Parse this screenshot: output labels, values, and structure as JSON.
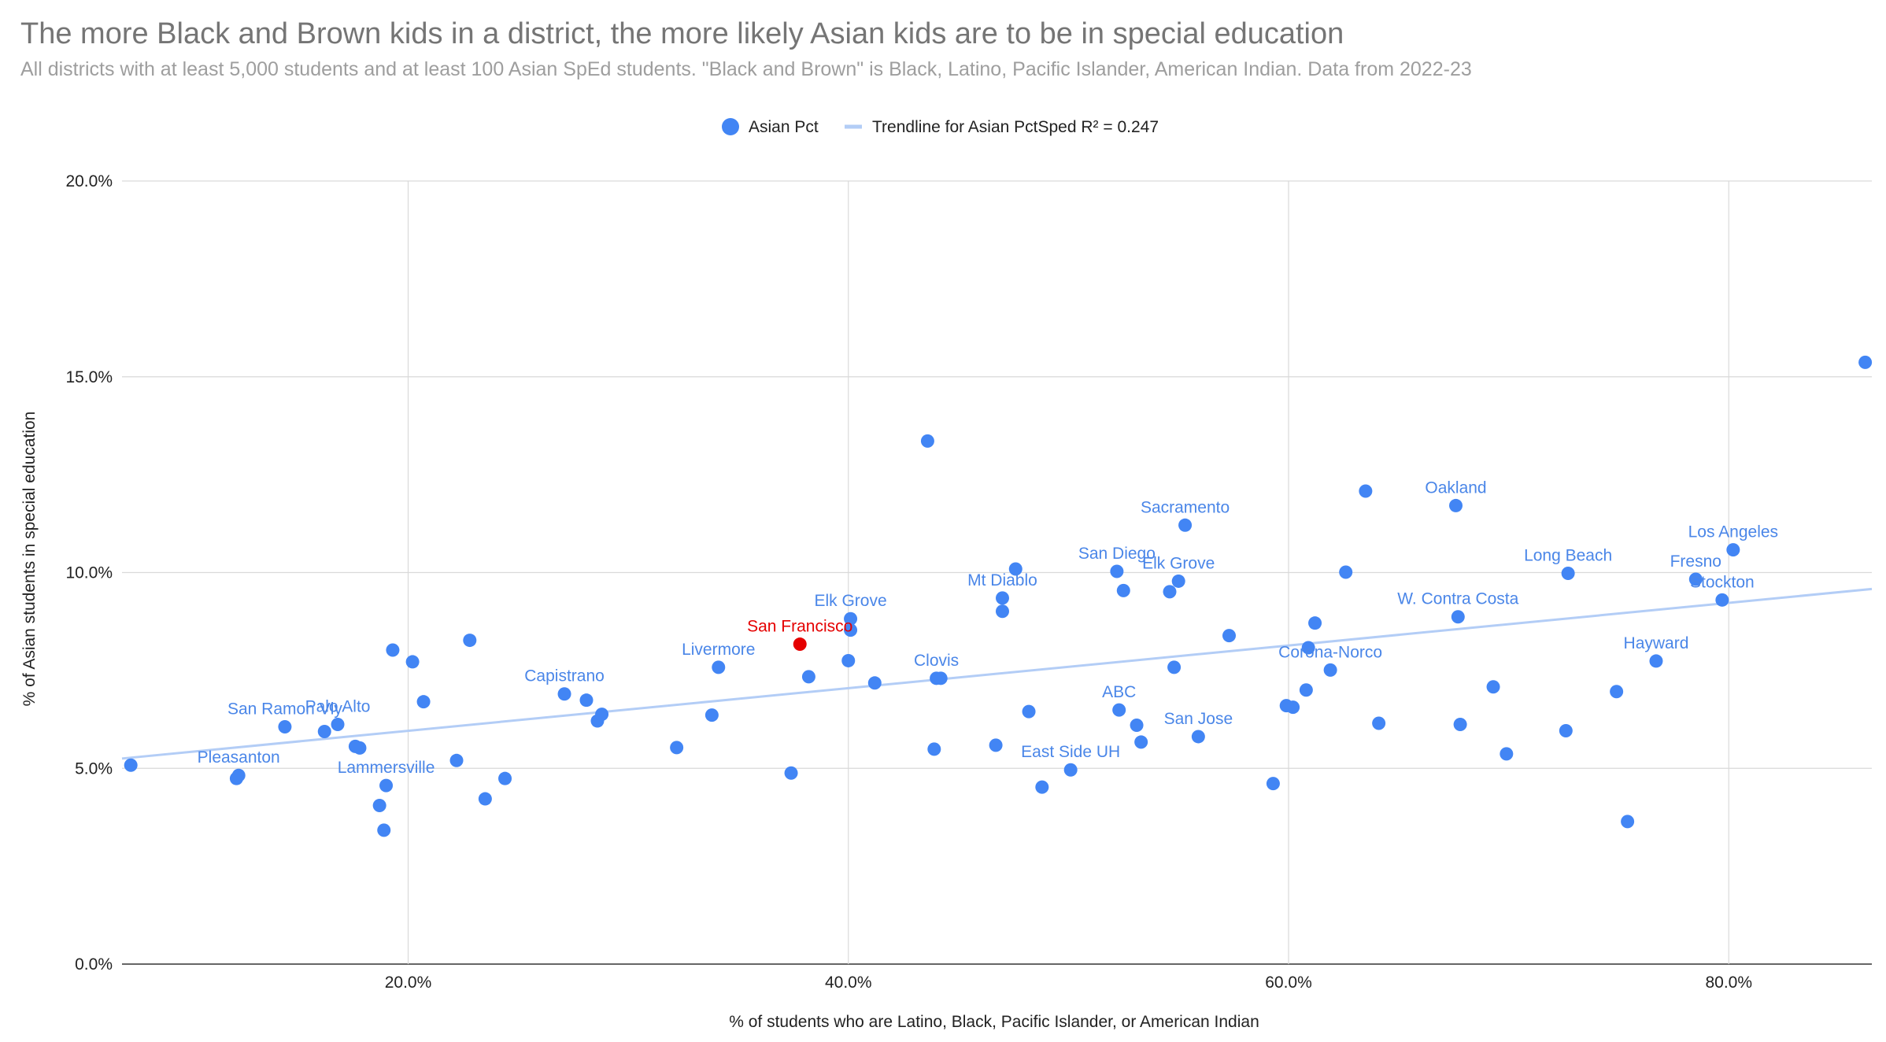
{
  "title": "The more Black and Brown kids in a district, the more likely Asian kids are to be in special education",
  "subtitle": "All districts with at least 5,000 students and at least 100 Asian SpEd students. \"Black and Brown\" is Black, Latino, Pacific Islander, American Indian. Data from 2022-23",
  "chart_data": {
    "type": "scatter",
    "xlabel": "% of students who are Latino, Black, Pacific Islander, or American Indian",
    "ylabel": "% of Asian students in special education",
    "xlim": [
      0.07,
      0.865
    ],
    "ylim": [
      0,
      0.2
    ],
    "x_ticks": [
      0.2,
      0.4,
      0.6,
      0.8
    ],
    "x_tick_labels": [
      "20.0%",
      "40.0%",
      "60.0%",
      "80.0%"
    ],
    "y_ticks": [
      0,
      0.05,
      0.1,
      0.15,
      0.2
    ],
    "y_tick_labels": [
      "0.0%",
      "5.0%",
      "10.0%",
      "15.0%",
      "20.0%"
    ],
    "grid": true,
    "legend_position": "top-center",
    "legend": [
      {
        "label": "Asian Pct",
        "kind": "point",
        "color": "#4285f4"
      },
      {
        "label": "Trendline for Asian PctSped R² = 0.247",
        "kind": "line",
        "color": "#b3cdf6"
      }
    ],
    "trendline": {
      "x": [
        0.07,
        0.865
      ],
      "y": [
        0.0525,
        0.0958
      ],
      "color": "#b3cdf6"
    },
    "series": [
      {
        "name": "Asian Pct",
        "color": "#4285f4",
        "points": [
          {
            "x": 0.074,
            "y": 0.0508,
            "label": ""
          },
          {
            "x": 0.122,
            "y": 0.0474,
            "label": ""
          },
          {
            "x": 0.123,
            "y": 0.0482,
            "label": "Pleasanton"
          },
          {
            "x": 0.144,
            "y": 0.0606,
            "label": "San Ramon Vly"
          },
          {
            "x": 0.162,
            "y": 0.0594,
            "label": ""
          },
          {
            "x": 0.168,
            "y": 0.0612,
            "label": "Palo Alto"
          },
          {
            "x": 0.176,
            "y": 0.0556,
            "label": ""
          },
          {
            "x": 0.178,
            "y": 0.0552,
            "label": ""
          },
          {
            "x": 0.187,
            "y": 0.0405,
            "label": ""
          },
          {
            "x": 0.189,
            "y": 0.0342,
            "label": ""
          },
          {
            "x": 0.19,
            "y": 0.0456,
            "label": "Lammersville"
          },
          {
            "x": 0.193,
            "y": 0.0802,
            "label": ""
          },
          {
            "x": 0.202,
            "y": 0.0772,
            "label": ""
          },
          {
            "x": 0.207,
            "y": 0.067,
            "label": ""
          },
          {
            "x": 0.222,
            "y": 0.052,
            "label": ""
          },
          {
            "x": 0.228,
            "y": 0.0827,
            "label": ""
          },
          {
            "x": 0.235,
            "y": 0.0422,
            "label": ""
          },
          {
            "x": 0.244,
            "y": 0.0474,
            "label": ""
          },
          {
            "x": 0.271,
            "y": 0.069,
            "label": "Capistrano"
          },
          {
            "x": 0.281,
            "y": 0.0674,
            "label": ""
          },
          {
            "x": 0.286,
            "y": 0.0621,
            "label": ""
          },
          {
            "x": 0.288,
            "y": 0.0638,
            "label": ""
          },
          {
            "x": 0.322,
            "y": 0.0553,
            "label": ""
          },
          {
            "x": 0.338,
            "y": 0.0636,
            "label": ""
          },
          {
            "x": 0.341,
            "y": 0.0758,
            "label": "Livermore"
          },
          {
            "x": 0.374,
            "y": 0.0488,
            "label": ""
          },
          {
            "x": 0.378,
            "y": 0.0817,
            "label": "San Francisco",
            "color": "#e50000",
            "label_color": "#e50000"
          },
          {
            "x": 0.382,
            "y": 0.0734,
            "label": ""
          },
          {
            "x": 0.4,
            "y": 0.0775,
            "label": ""
          },
          {
            "x": 0.401,
            "y": 0.0853,
            "label": ""
          },
          {
            "x": 0.401,
            "y": 0.0882,
            "label": "Elk Grove"
          },
          {
            "x": 0.412,
            "y": 0.0718,
            "label": ""
          },
          {
            "x": 0.436,
            "y": 0.1336,
            "label": ""
          },
          {
            "x": 0.439,
            "y": 0.0549,
            "label": ""
          },
          {
            "x": 0.44,
            "y": 0.073,
            "label": "Clovis"
          },
          {
            "x": 0.442,
            "y": 0.073,
            "label": ""
          },
          {
            "x": 0.467,
            "y": 0.0559,
            "label": ""
          },
          {
            "x": 0.47,
            "y": 0.0935,
            "label": "Mt Diablo"
          },
          {
            "x": 0.47,
            "y": 0.0901,
            "label": ""
          },
          {
            "x": 0.476,
            "y": 0.1009,
            "label": ""
          },
          {
            "x": 0.482,
            "y": 0.0645,
            "label": ""
          },
          {
            "x": 0.488,
            "y": 0.0452,
            "label": ""
          },
          {
            "x": 0.501,
            "y": 0.0496,
            "label": "East Side UH"
          },
          {
            "x": 0.522,
            "y": 0.1003,
            "label": "San Diego"
          },
          {
            "x": 0.523,
            "y": 0.0649,
            "label": "ABC"
          },
          {
            "x": 0.525,
            "y": 0.0954,
            "label": ""
          },
          {
            "x": 0.531,
            "y": 0.061,
            "label": ""
          },
          {
            "x": 0.533,
            "y": 0.0567,
            "label": ""
          },
          {
            "x": 0.546,
            "y": 0.0951,
            "label": ""
          },
          {
            "x": 0.548,
            "y": 0.0758,
            "label": ""
          },
          {
            "x": 0.55,
            "y": 0.0978,
            "label": "Elk Grove"
          },
          {
            "x": 0.553,
            "y": 0.1121,
            "label": "Sacramento"
          },
          {
            "x": 0.559,
            "y": 0.0581,
            "label": "San Jose"
          },
          {
            "x": 0.573,
            "y": 0.0839,
            "label": ""
          },
          {
            "x": 0.593,
            "y": 0.0461,
            "label": ""
          },
          {
            "x": 0.599,
            "y": 0.066,
            "label": ""
          },
          {
            "x": 0.602,
            "y": 0.0656,
            "label": ""
          },
          {
            "x": 0.608,
            "y": 0.07,
            "label": ""
          },
          {
            "x": 0.609,
            "y": 0.0808,
            "label": ""
          },
          {
            "x": 0.612,
            "y": 0.0871,
            "label": ""
          },
          {
            "x": 0.619,
            "y": 0.0751,
            "label": "Corona-Norco"
          },
          {
            "x": 0.626,
            "y": 0.1001,
            "label": ""
          },
          {
            "x": 0.635,
            "y": 0.1208,
            "label": ""
          },
          {
            "x": 0.641,
            "y": 0.0615,
            "label": ""
          },
          {
            "x": 0.676,
            "y": 0.1171,
            "label": "Oakland"
          },
          {
            "x": 0.677,
            "y": 0.0887,
            "label": "W. Contra Costa"
          },
          {
            "x": 0.678,
            "y": 0.0612,
            "label": ""
          },
          {
            "x": 0.693,
            "y": 0.0708,
            "label": ""
          },
          {
            "x": 0.699,
            "y": 0.0537,
            "label": ""
          },
          {
            "x": 0.726,
            "y": 0.0596,
            "label": ""
          },
          {
            "x": 0.727,
            "y": 0.0998,
            "label": "Long Beach"
          },
          {
            "x": 0.749,
            "y": 0.0696,
            "label": ""
          },
          {
            "x": 0.754,
            "y": 0.0364,
            "label": ""
          },
          {
            "x": 0.767,
            "y": 0.0774,
            "label": "Hayward"
          },
          {
            "x": 0.785,
            "y": 0.0983,
            "label": "Fresno"
          },
          {
            "x": 0.797,
            "y": 0.093,
            "label": "Stockton"
          },
          {
            "x": 0.802,
            "y": 0.1058,
            "label": "Los Angeles"
          },
          {
            "x": 0.862,
            "y": 0.1537,
            "label": ""
          }
        ]
      }
    ]
  }
}
